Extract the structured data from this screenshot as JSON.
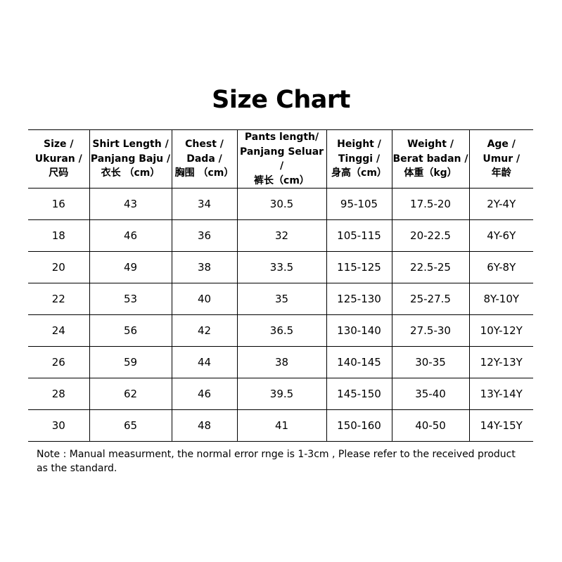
{
  "title": "Size Chart",
  "headers": [
    [
      "Size /",
      "Ukuran /",
      "尺码"
    ],
    [
      "Shirt Length /",
      "Panjang Baju /",
      "衣长 （cm）"
    ],
    [
      "Chest /",
      "Dada /",
      "胸围 （cm）"
    ],
    [
      "Pants length/",
      "Panjang Seluar /",
      "裤长（cm）"
    ],
    [
      "Height /",
      "Tinggi /",
      "身高（cm）"
    ],
    [
      "Weight /",
      "Berat badan /",
      "体重（kg）"
    ],
    [
      "Age /",
      "Umur /",
      "年龄"
    ]
  ],
  "rows": [
    [
      "16",
      "43",
      "34",
      "30.5",
      "95-105",
      "17.5-20",
      "2Y-4Y"
    ],
    [
      "18",
      "46",
      "36",
      "32",
      "105-115",
      "20-22.5",
      "4Y-6Y"
    ],
    [
      "20",
      "49",
      "38",
      "33.5",
      "115-125",
      "22.5-25",
      "6Y-8Y"
    ],
    [
      "22",
      "53",
      "40",
      "35",
      "125-130",
      "25-27.5",
      "8Y-10Y"
    ],
    [
      "24",
      "56",
      "42",
      "36.5",
      "130-140",
      "27.5-30",
      "10Y-12Y"
    ],
    [
      "26",
      "59",
      "44",
      "38",
      "140-145",
      "30-35",
      "12Y-13Y"
    ],
    [
      "28",
      "62",
      "46",
      "39.5",
      "145-150",
      "35-40",
      "13Y-14Y"
    ],
    [
      "30",
      "65",
      "48",
      "41",
      "150-160",
      "40-50",
      "14Y-15Y"
    ]
  ],
  "note": "Note : Manual measurment, the normal error rnge is 1-3cm , Please refer to the received product as the standard."
}
